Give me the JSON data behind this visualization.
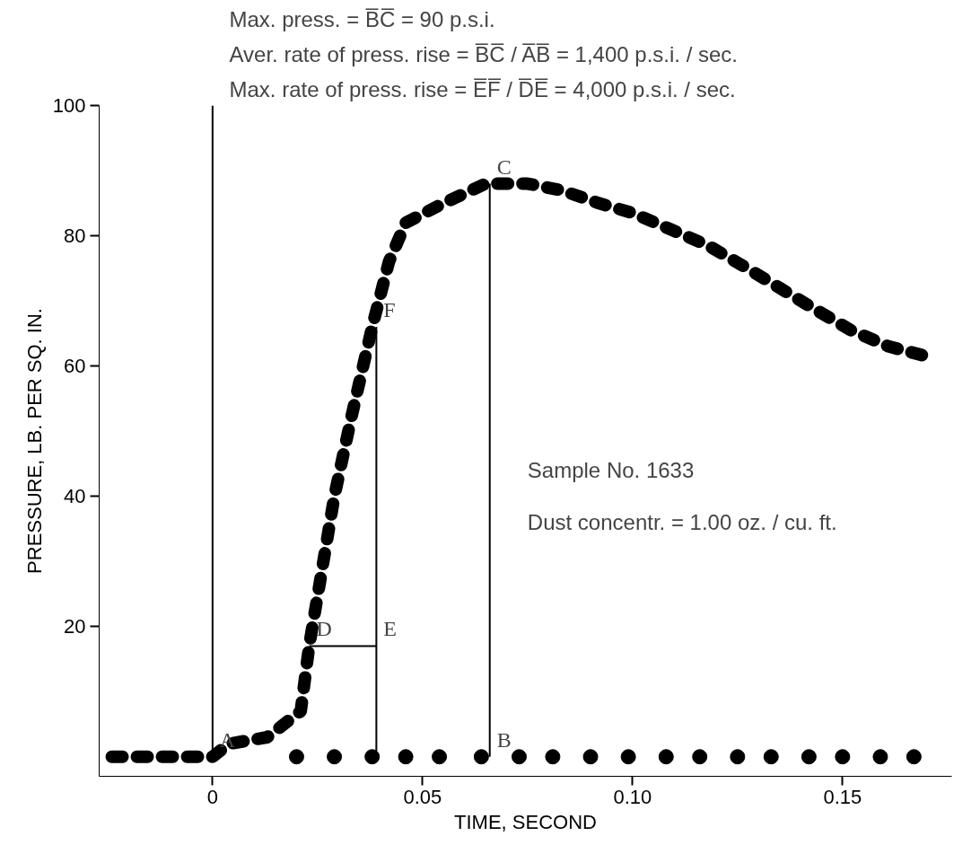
{
  "chart_data": {
    "type": "line",
    "xlabel": "TIME, SECOND",
    "ylabel": "PRESSURE, LB. PER SQ. IN.",
    "xlim": [
      -0.027,
      0.176
    ],
    "ylim": [
      -3,
      100
    ],
    "xticks": [
      {
        "value": 0,
        "label": "0"
      },
      {
        "value": 0.05,
        "label": "0.05"
      },
      {
        "value": 0.1,
        "label": "0.10"
      },
      {
        "value": 0.15,
        "label": "0.15"
      }
    ],
    "yticks": [
      20,
      40,
      60,
      80,
      100
    ],
    "grid": false,
    "series": [
      {
        "line_style": "dashed",
        "color": "#000000",
        "x": [
          -0.024,
          -0.015,
          -0.006,
          0.0,
          0.004,
          0.013,
          0.021,
          0.023,
          0.029,
          0.033,
          0.038,
          0.042,
          0.046,
          0.055,
          0.065,
          0.075,
          0.083,
          0.092,
          0.1,
          0.109,
          0.118,
          0.126,
          0.135,
          0.144,
          0.152,
          0.161,
          0.17
        ],
        "values": [
          0,
          0,
          0,
          0,
          2,
          3,
          7,
          17,
          40,
          52,
          66,
          76,
          82,
          85,
          88,
          88,
          87,
          85,
          83.5,
          81,
          78.5,
          75.5,
          72,
          68.5,
          65.5,
          63,
          61.5
        ]
      },
      {
        "type": "scatter",
        "marker": "circle",
        "color": "#000000",
        "x": [
          0.02,
          0.029,
          0.038,
          0.046,
          0.054,
          0.064,
          0.073,
          0.081,
          0.09,
          0.099,
          0.108,
          0.116,
          0.125,
          0.133,
          0.142,
          0.15,
          0.159,
          0.167
        ],
        "values": [
          0,
          0,
          0,
          0,
          0,
          0,
          0,
          0,
          0,
          0,
          0,
          0,
          0,
          0,
          0,
          0,
          0,
          0
        ]
      },
      {
        "line_style": "solid",
        "color": "#000000",
        "x": [
          0.066,
          0.066
        ],
        "values": [
          0,
          88
        ]
      },
      {
        "line_style": "solid",
        "color": "#000000",
        "x": [
          0.023,
          0.039
        ],
        "values": [
          17,
          17
        ]
      },
      {
        "line_style": "solid",
        "color": "#000000",
        "x": [
          0.039,
          0.039
        ],
        "values": [
          0,
          66
        ]
      },
      {
        "line_style": "solid",
        "color": "#000000",
        "x": [
          0.0,
          0.0
        ],
        "values": [
          0,
          100
        ]
      }
    ],
    "annotations": [
      "Max. press. = B̅C̅ = 90 p.s.i.",
      "Aver. rate of press. rise = B̅C̅ / A̅B̅ = 1,400 p.s.i. / sec.",
      "Max. rate of press. rise = E̅F̅ / D̅E̅ = 4,000 p.s.i. / sec.",
      "Sample No. 1633",
      "Dust concentr. = 1.00 oz. / cu. ft.",
      {
        "text": "A",
        "x": 0.0,
        "y": 0
      },
      {
        "text": "B",
        "x": 0.066,
        "y": 0
      },
      {
        "text": "C",
        "x": 0.066,
        "y": 88
      },
      {
        "text": "D",
        "x": 0.023,
        "y": 17
      },
      {
        "text": "E",
        "x": 0.039,
        "y": 17
      },
      {
        "text": "F",
        "x": 0.039,
        "y": 66
      }
    ]
  }
}
